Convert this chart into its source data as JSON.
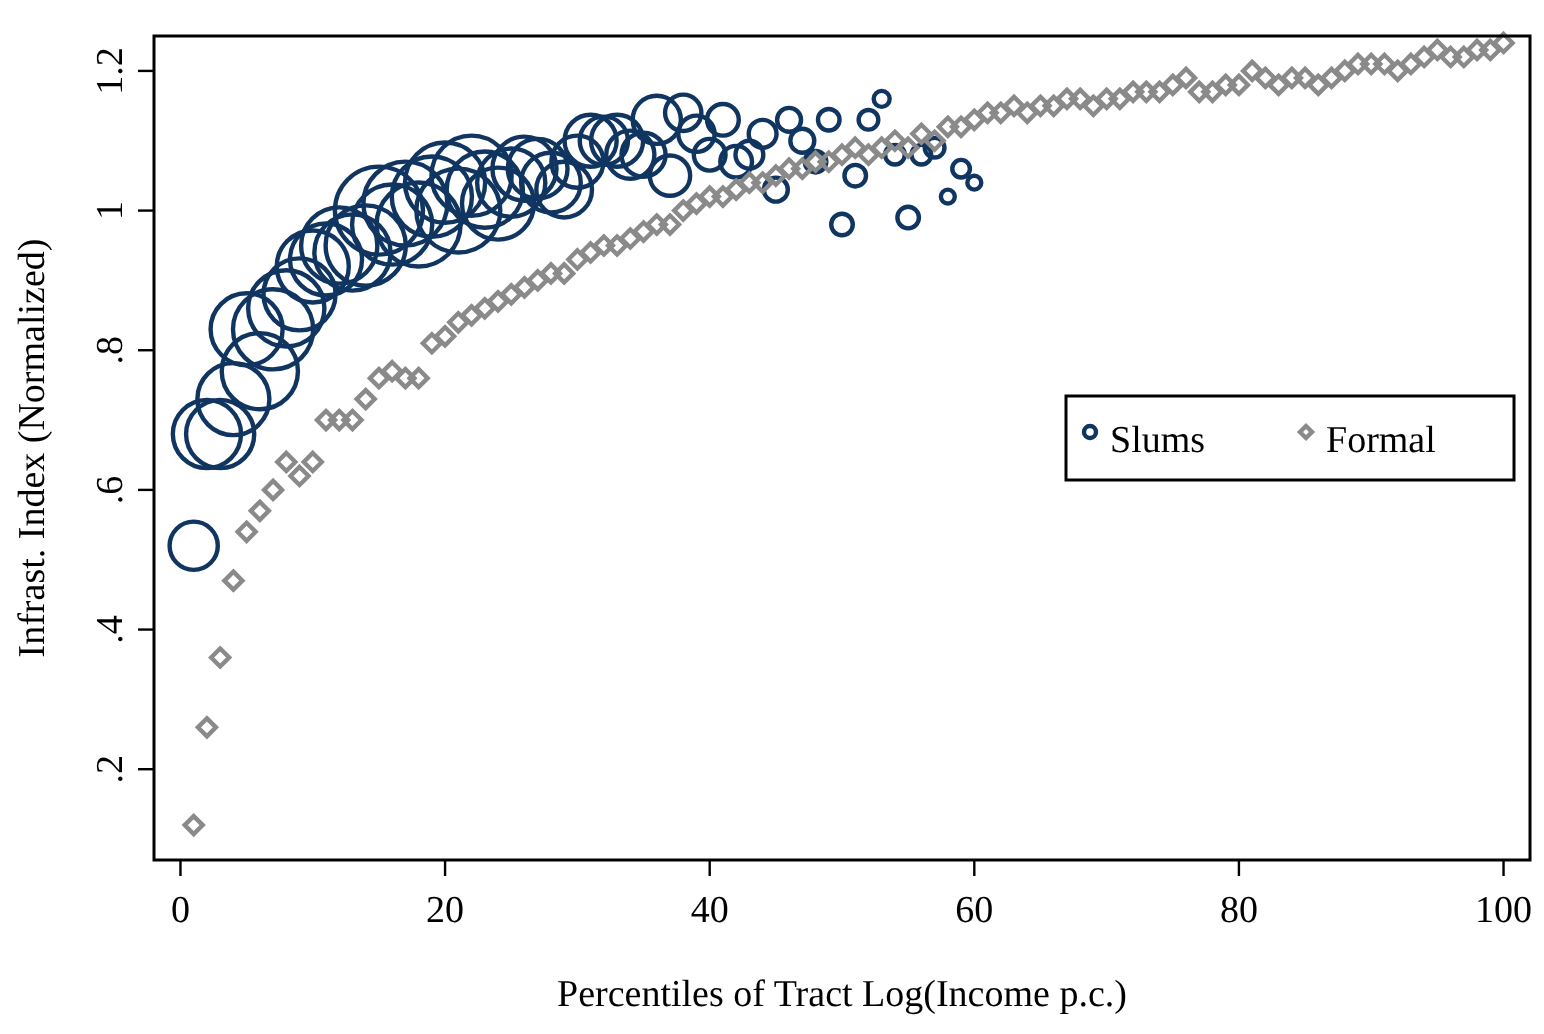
{
  "chart_data": {
    "type": "bubble",
    "xlabel": "Percentiles of Tract Log(Income p.c.)",
    "ylabel": "Infrast. Index (Normalized)",
    "xlim": [
      -2,
      102
    ],
    "xticks": [
      0,
      20,
      40,
      60,
      80,
      100
    ],
    "ylim": [
      0.07,
      1.25
    ],
    "yticks": [
      {
        "value": 0.2,
        "label": ".2"
      },
      {
        "value": 0.4,
        "label": ".4"
      },
      {
        "value": 0.6,
        "label": ".6"
      },
      {
        "value": 0.8,
        "label": ".8"
      },
      1,
      1.2
    ],
    "grid": false,
    "legend": "right",
    "series": [
      {
        "name": "Slums",
        "marker": "circle",
        "color": "#0f3560",
        "x": [
          1,
          2,
          3,
          4,
          5,
          6,
          7,
          8,
          9,
          10,
          11,
          12,
          13,
          14,
          15,
          16,
          17,
          18,
          19,
          20,
          21,
          22,
          23,
          24,
          25,
          26,
          27,
          28,
          29,
          30,
          31,
          32,
          33,
          34,
          35,
          36,
          37,
          38,
          39,
          40,
          41,
          42,
          43,
          44,
          45,
          46,
          47,
          48,
          49,
          50,
          51,
          52,
          53,
          54,
          55,
          56,
          57,
          58,
          59,
          60
        ],
        "values": [
          0.52,
          0.68,
          0.68,
          0.73,
          0.83,
          0.77,
          0.83,
          0.86,
          0.88,
          0.92,
          0.93,
          0.95,
          0.94,
          0.95,
          1.0,
          0.98,
          1.01,
          0.98,
          1.02,
          1.04,
          1.0,
          1.05,
          1.03,
          1.01,
          1.04,
          1.06,
          1.06,
          1.04,
          1.03,
          1.07,
          1.1,
          1.1,
          1.1,
          1.08,
          1.08,
          1.13,
          1.05,
          1.14,
          1.11,
          1.08,
          1.13,
          1.07,
          1.08,
          1.11,
          1.03,
          1.13,
          1.1,
          1.07,
          1.13,
          0.98,
          1.05,
          1.13,
          1.16,
          1.08,
          0.99,
          1.08,
          1.09,
          1.02,
          1.06,
          1.04
        ],
        "sizes": [
          0.3,
          0.6,
          0.6,
          0.67,
          0.67,
          0.75,
          0.83,
          0.75,
          0.67,
          0.67,
          0.67,
          0.75,
          0.75,
          0.83,
          1,
          0.83,
          0.91,
          0.91,
          0.83,
          0.83,
          0.91,
          0.83,
          0.75,
          0.67,
          0.6,
          0.53,
          0.46,
          0.46,
          0.4,
          0.35,
          0.35,
          0.3,
          0.35,
          0.3,
          0.25,
          0.3,
          0.21,
          0.17,
          0.17,
          0.13,
          0.13,
          0.13,
          0.1,
          0.1,
          0.074,
          0.074,
          0.074,
          0.06,
          0.06,
          0.06,
          0.06,
          0.05,
          0.033,
          0.05,
          0.06,
          0.05,
          0.05,
          0.025,
          0.04,
          0.025
        ]
      },
      {
        "name": "Formal",
        "type": "scatter",
        "marker": "diamond",
        "color": "#8a8a8a",
        "x": [
          1,
          2,
          3,
          4,
          5,
          6,
          7,
          8,
          9,
          10,
          11,
          12,
          13,
          14,
          15,
          16,
          17,
          18,
          19,
          20,
          21,
          22,
          23,
          24,
          25,
          26,
          27,
          28,
          29,
          30,
          31,
          32,
          33,
          34,
          35,
          36,
          37,
          38,
          39,
          40,
          41,
          42,
          43,
          44,
          45,
          46,
          47,
          48,
          49,
          50,
          51,
          52,
          53,
          54,
          55,
          56,
          57,
          58,
          59,
          60,
          61,
          62,
          63,
          64,
          65,
          66,
          67,
          68,
          69,
          70,
          71,
          72,
          73,
          74,
          75,
          76,
          77,
          78,
          79,
          80,
          81,
          82,
          83,
          84,
          85,
          86,
          87,
          88,
          89,
          90,
          91,
          92,
          93,
          94,
          95,
          96,
          97,
          98,
          99,
          100
        ],
        "values": [
          0.12,
          0.26,
          0.36,
          0.47,
          0.54,
          0.57,
          0.6,
          0.64,
          0.62,
          0.64,
          0.7,
          0.7,
          0.7,
          0.73,
          0.76,
          0.77,
          0.76,
          0.76,
          0.81,
          0.82,
          0.84,
          0.85,
          0.86,
          0.87,
          0.88,
          0.89,
          0.9,
          0.91,
          0.91,
          0.93,
          0.94,
          0.95,
          0.95,
          0.96,
          0.97,
          0.98,
          0.98,
          1.0,
          1.01,
          1.02,
          1.02,
          1.03,
          1.04,
          1.04,
          1.05,
          1.06,
          1.06,
          1.07,
          1.07,
          1.08,
          1.09,
          1.08,
          1.09,
          1.1,
          1.09,
          1.11,
          1.1,
          1.12,
          1.12,
          1.13,
          1.14,
          1.14,
          1.15,
          1.14,
          1.15,
          1.15,
          1.16,
          1.16,
          1.15,
          1.16,
          1.16,
          1.17,
          1.17,
          1.17,
          1.18,
          1.19,
          1.17,
          1.17,
          1.18,
          1.18,
          1.2,
          1.19,
          1.18,
          1.19,
          1.19,
          1.18,
          1.19,
          1.2,
          1.21,
          1.21,
          1.21,
          1.2,
          1.21,
          1.22,
          1.23,
          1.22,
          1.22,
          1.23,
          1.23,
          1.24
        ]
      }
    ]
  }
}
